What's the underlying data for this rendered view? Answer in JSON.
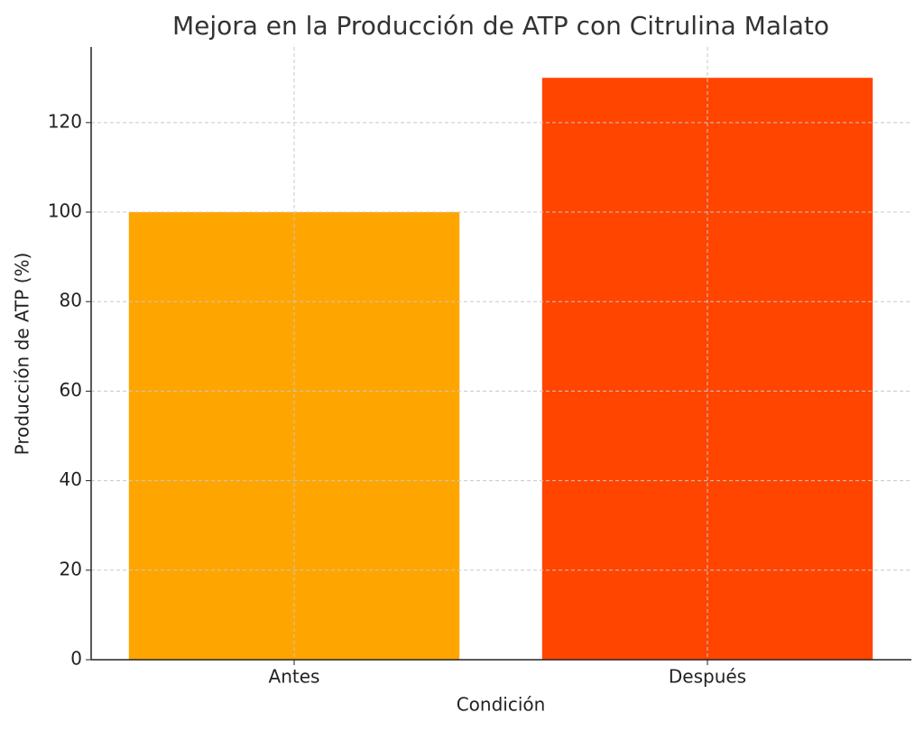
{
  "chart_data": {
    "type": "bar",
    "title": "Mejora en la Producción de ATP con Citrulina Malato",
    "x_label": "Condición",
    "y_label": "Producción de ATP (%)",
    "categories": [
      "Antes",
      "Después"
    ],
    "values": [
      100,
      130
    ],
    "colors": [
      "#ffa500",
      "#ff4500"
    ],
    "ylim": [
      0,
      136.5
    ],
    "yticks": [
      0,
      20,
      40,
      60,
      80,
      100,
      120
    ],
    "grid": true
  }
}
